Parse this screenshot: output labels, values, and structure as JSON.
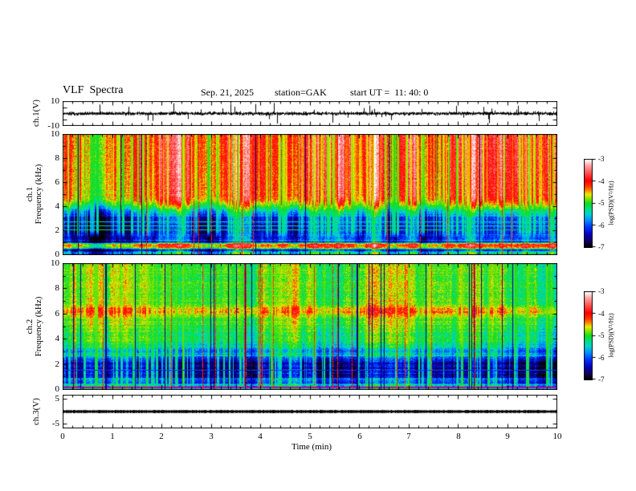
{
  "header": {
    "title": "VLF  Spectra",
    "date": "Sep. 21, 2025",
    "station": "station=GAK",
    "start_ut": "start UT =  11: 40: 0"
  },
  "x_axis": {
    "title": "Time  (min)",
    "ticks": [
      "0",
      "1",
      "2",
      "3",
      "4",
      "5",
      "6",
      "7",
      "8",
      "9",
      "10"
    ]
  },
  "wave1": {
    "axis_label": "ch.1(V)",
    "ticks": [
      "10",
      "-10"
    ]
  },
  "spec1": {
    "axis_label_line1": "ch.1",
    "axis_label_line2": "Frequency  (kHz)",
    "ticks": [
      "10",
      "8",
      "6",
      "4",
      "2",
      "0"
    ]
  },
  "spec2": {
    "axis_label_line1": "ch.2",
    "axis_label_line2": "Frequency  (kHz)",
    "ticks": [
      "10",
      "8",
      "6",
      "4",
      "2",
      "0"
    ]
  },
  "wave3": {
    "axis_label": "ch.3(V)",
    "ticks": [
      "5",
      "-5"
    ]
  },
  "colorbar1": {
    "title": "log(PSD)(V²/Hz)",
    "ticks": [
      "-3",
      "-4",
      "-5",
      "-6",
      "-7"
    ]
  },
  "colorbar2": {
    "title": "log(PSD)(V²/Hz)",
    "ticks": [
      "-3",
      "-4",
      "-5",
      "-6",
      "-7"
    ]
  },
  "chart_data": [
    {
      "type": "line",
      "name": "ch1_waveform",
      "ylabel": "ch.1(V)",
      "ylim": [
        -10,
        10
      ],
      "xlim": [
        0,
        10
      ],
      "xlabel": "Time (min)",
      "description": "dense broadband noise centred on 0 V, rms ≈ 1.5 V, with frequent impulsive spikes reaching about ±9 V over the full 0–10 min record",
      "render": {
        "seed": 11,
        "std": 1.35,
        "spike_prob": 0.1,
        "spike_max": 8.5
      }
    },
    {
      "type": "heatmap",
      "name": "ch1_spectrogram",
      "title": "ch.1 VLF spectrogram",
      "ylabel": "ch.1 Frequency (kHz)",
      "ylim": [
        0,
        10
      ],
      "xlim": [
        0,
        10
      ],
      "value_label": "log(PSD)(V²/Hz)",
      "value_range": [
        -7,
        -3
      ],
      "legend_position": "right colorbar",
      "grid": false,
      "description": "strong red/orange PSD (≈ -3.7) from 4.5–10 kHz cut by green vertical striations, blue background (≈ -6.2) 1.4–3.5 kHz with cyan vertical streaks, thin cyan horizontal lines near 2.05/2.4/2.75 kHz, intense yellow-red horizontal band near 0.7–1.0 kHz, cyan-green mix below 0.6 kHz",
      "profile": [
        [
          0,
          -5.8
        ],
        [
          0.15,
          -5.2
        ],
        [
          0.3,
          -5.6
        ],
        [
          0.42,
          -6.5
        ],
        [
          0.55,
          -5.0
        ],
        [
          0.68,
          -4.2
        ],
        [
          0.8,
          -4.0
        ],
        [
          0.95,
          -4.5
        ],
        [
          1.08,
          -6.6
        ],
        [
          1.2,
          -5.6
        ],
        [
          1.35,
          -6.2
        ],
        [
          3.0,
          -6.15
        ],
        [
          3.6,
          -5.4
        ],
        [
          4.1,
          -4.6
        ],
        [
          4.6,
          -4.0
        ],
        [
          5.2,
          -3.85
        ],
        [
          10,
          -3.72
        ]
      ],
      "hlines": [
        {
          "f": 2.05,
          "level": -5.2
        },
        {
          "f": 2.4,
          "level": -5.3
        },
        {
          "f": 2.75,
          "level": -5.3
        }
      ],
      "render": {
        "seed": 22,
        "col_noise": 0.45,
        "row_noise": 0.1,
        "stripe_below": 3.4,
        "pix_noise": 0.3,
        "streak_density": 0.5,
        "streak_level": -5.05,
        "streak_fmin": 1.35,
        "dark_density": 0.02,
        "dark_level": -6.85,
        "red_density": 0.012,
        "red_level": -4.1
      }
    },
    {
      "type": "heatmap",
      "name": "ch2_spectrogram",
      "title": "ch.2 VLF spectrogram",
      "ylabel": "ch.2 Frequency (kHz)",
      "ylim": [
        0,
        10
      ],
      "xlim": [
        0,
        10
      ],
      "value_label": "log(PSD)(V²/Hz)",
      "value_range": [
        -7,
        -3
      ],
      "legend_position": "right colorbar",
      "grid": false,
      "description": "green field (≈ -5.0) from 3–10 kHz crossed by narrow red and dark-navy vertical streaks, yellow horizontal band near 6.2 kHz with red flecks, striped cyan/blue 2.4–3.6 kHz, dark-blue band (≈ -6.6) 1–2.4 kHz, blue/cyan stripes below 1 kHz and magenta/dark-red horizontal lines at the bottom edge",
      "profile": [
        [
          0,
          -6.3
        ],
        [
          0.12,
          -5.3
        ],
        [
          0.25,
          -5.9
        ],
        [
          0.4,
          -5.5
        ],
        [
          0.55,
          -6.2
        ],
        [
          0.7,
          -5.8
        ],
        [
          0.9,
          -6.1
        ],
        [
          1.1,
          -6.6
        ],
        [
          2.1,
          -6.6
        ],
        [
          2.5,
          -6.1
        ],
        [
          2.7,
          -5.5
        ],
        [
          2.95,
          -6.0
        ],
        [
          3.3,
          -5.6
        ],
        [
          3.8,
          -5.3
        ],
        [
          4.8,
          -5.1
        ],
        [
          5.6,
          -4.95
        ],
        [
          6.0,
          -4.5
        ],
        [
          6.2,
          -4.3
        ],
        [
          6.45,
          -4.6
        ],
        [
          6.9,
          -5.0
        ],
        [
          10,
          -5.0
        ]
      ],
      "hlines": [
        {
          "f": 1.5,
          "level": -6.1
        },
        {
          "f": 0.22,
          "rgb": [
            170,
            0,
            100
          ]
        },
        {
          "f": 0.1,
          "rgb": [
            240,
            0,
            200
          ]
        }
      ],
      "render": {
        "seed": 33,
        "col_noise": 0.3,
        "row_noise": 0.14,
        "stripe_below": 3.6,
        "pix_noise": 0.32,
        "streak_density": 0.3,
        "streak_level": -4.85,
        "streak_fmin": 0,
        "dark_density": 0.045,
        "dark_level": -6.8,
        "red_density": 0.028,
        "red_level": -4.15
      }
    },
    {
      "type": "line",
      "name": "ch3_waveform",
      "ylabel": "ch.3(V)",
      "ylim": [
        -6.5,
        6.5
      ],
      "yticks": [
        5,
        -5
      ],
      "xlim": [
        0,
        10
      ],
      "xlabel": "Time (min)",
      "description": "constant flat trace at 0 V drawn as a thick black band across the whole record",
      "render": {
        "seed": 44,
        "band_volts": 0.5
      }
    }
  ]
}
